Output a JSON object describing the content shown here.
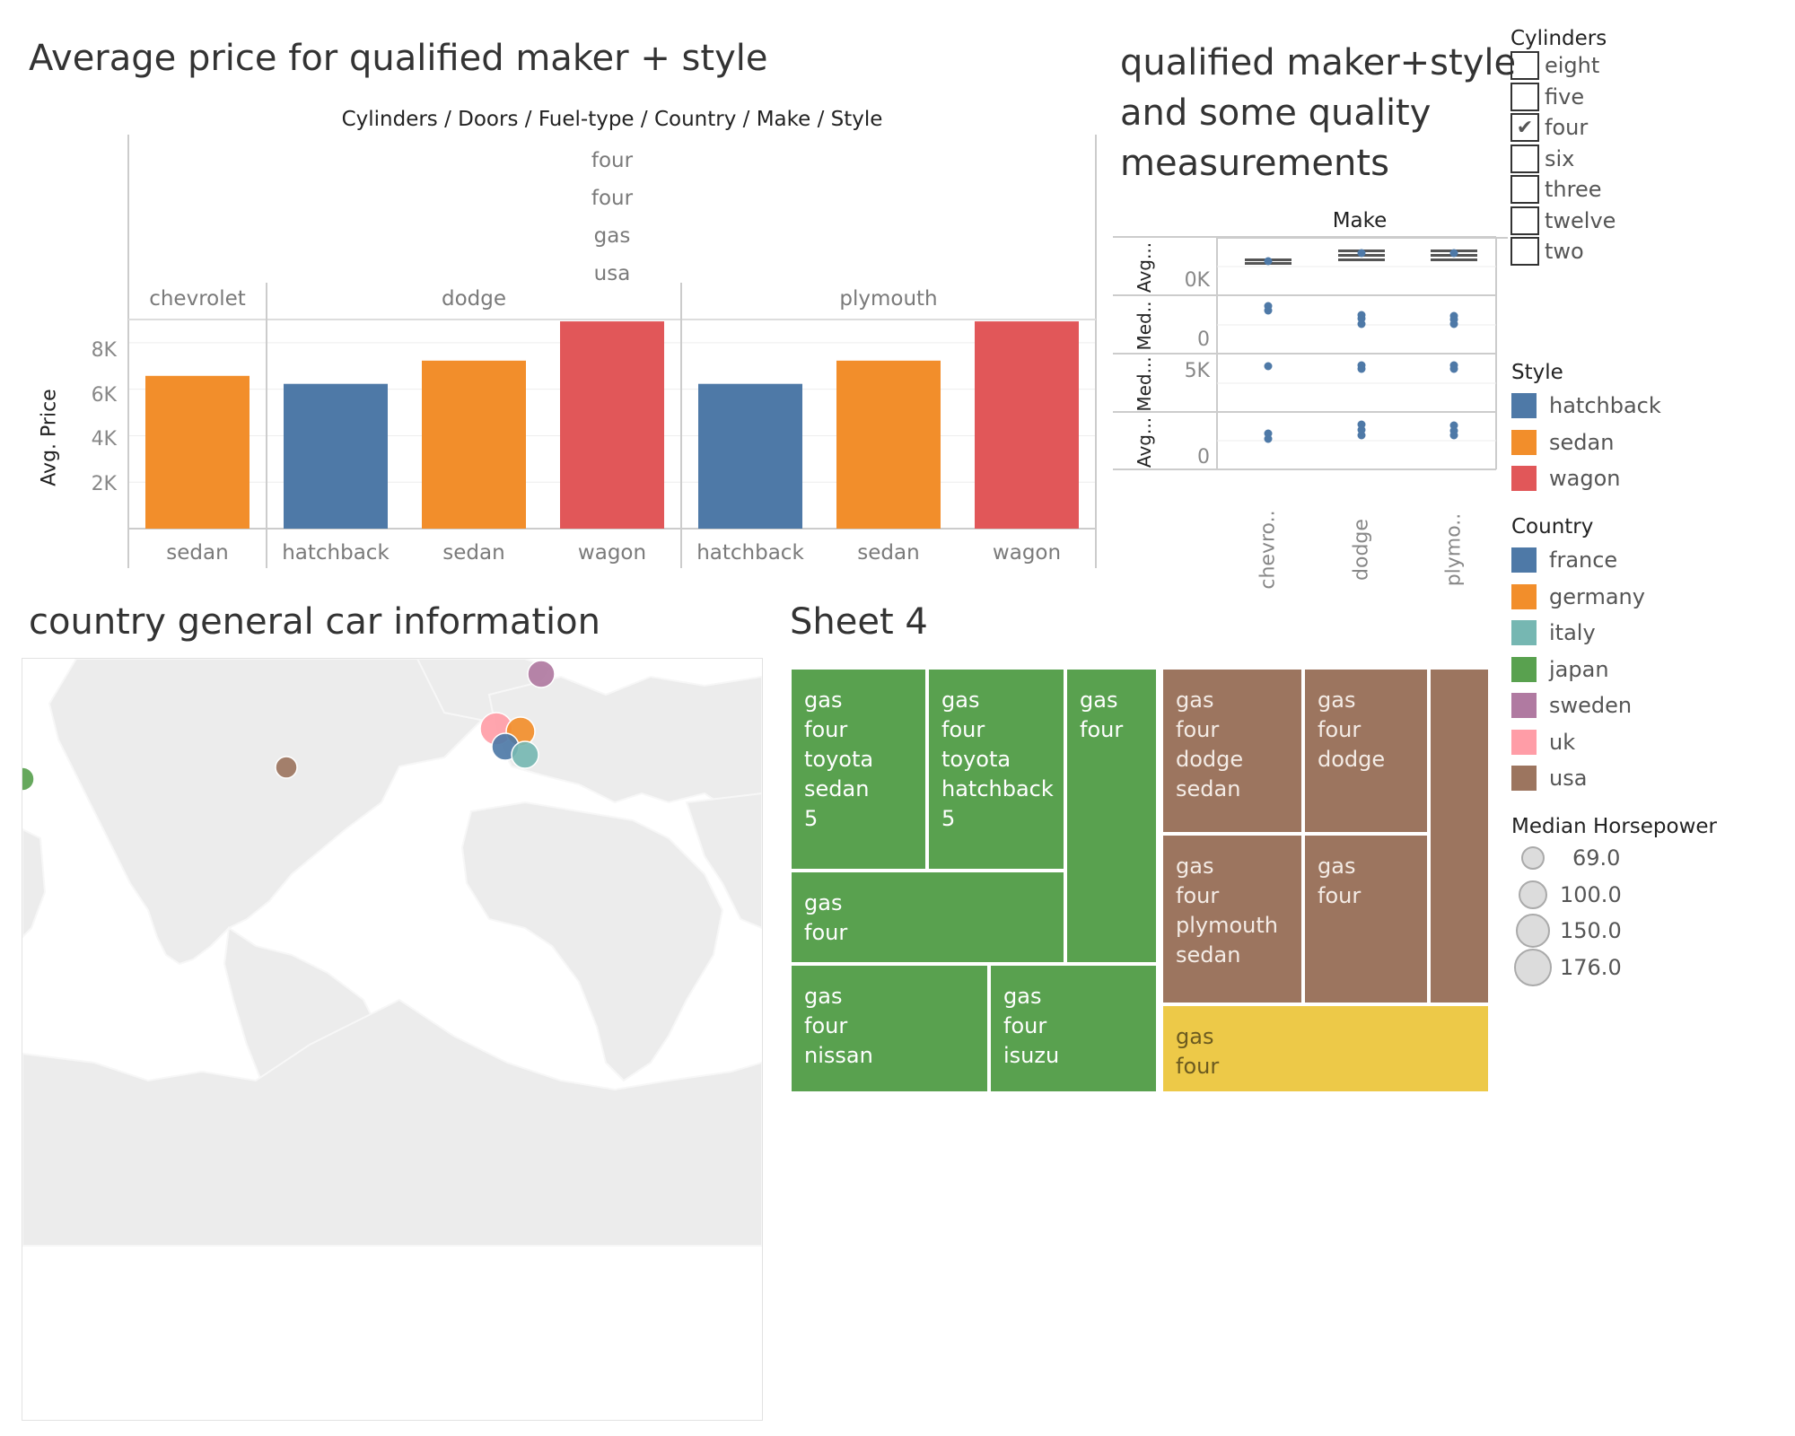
{
  "titles": {
    "avg_price": "Average price for qualified maker + style",
    "quality": "qualified maker+style and some quality measurements",
    "quality_lines": [
      "qualified maker+style",
      "and some quality",
      "measurements"
    ],
    "country": "country general car information",
    "sheet4": "Sheet 4"
  },
  "bar_chart": {
    "header": "Cylinders  /  Doors  /  Fuel-type  /  Country  /  Make  /  Style",
    "header_values": [
      "four",
      "four",
      "gas",
      "usa"
    ],
    "makes": [
      "chevrolet",
      "dodge",
      "plymouth"
    ],
    "y_label": "Avg. Price",
    "y_ticks": [
      "8K",
      "6K",
      "4K",
      "2K"
    ]
  },
  "chart_data": [
    {
      "type": "bar",
      "title": "Average price for qualified maker + style",
      "ylabel": "Avg. Price",
      "ylim": [
        0,
        9000
      ],
      "groups": [
        "chevrolet",
        "dodge",
        "plymouth"
      ],
      "bars": [
        {
          "make": "chevrolet",
          "style": "sedan",
          "value": 6575
        },
        {
          "make": "dodge",
          "style": "hatchback",
          "value": 6230
        },
        {
          "make": "dodge",
          "style": "sedan",
          "value": 7230
        },
        {
          "make": "dodge",
          "style": "wagon",
          "value": 8920
        },
        {
          "make": "plymouth",
          "style": "hatchback",
          "value": 6230
        },
        {
          "make": "plymouth",
          "style": "sedan",
          "value": 7230
        },
        {
          "make": "plymouth",
          "style": "wagon",
          "value": 8920
        }
      ],
      "grid": true
    },
    {
      "type": "scatter",
      "title": "qualified maker+style and some quality measurements",
      "xlabel": "Make",
      "categories": [
        "chevro..",
        "dodge",
        "plymo.."
      ],
      "rows": [
        {
          "label": "Avg...",
          "tick": "0K"
        },
        {
          "label": "Med..",
          "tick": "0"
        },
        {
          "label": "Med...",
          "tick": "5K"
        },
        {
          "label": "Avg...",
          "tick": "0"
        }
      ]
    }
  ],
  "quality_chart": {
    "col_header": "Make",
    "row_labels": [
      "Avg...",
      "Med..",
      "Med...",
      "Avg..."
    ],
    "row_ticks": [
      "0K",
      "0",
      "5K",
      "0"
    ],
    "x_labels": [
      "chevro..",
      "dodge",
      "plymo.."
    ]
  },
  "legends": {
    "cylinders": {
      "title": "Cylinders",
      "items": [
        {
          "label": "eight",
          "checked": false
        },
        {
          "label": "five",
          "checked": false
        },
        {
          "label": "four",
          "checked": true
        },
        {
          "label": "six",
          "checked": false
        },
        {
          "label": "three",
          "checked": false
        },
        {
          "label": "twelve",
          "checked": false
        },
        {
          "label": "two",
          "checked": false
        }
      ]
    },
    "style": {
      "title": "Style",
      "items": [
        {
          "label": "hatchback",
          "color": "#4e79a7"
        },
        {
          "label": "sedan",
          "color": "#f28e2b"
        },
        {
          "label": "wagon",
          "color": "#e15759"
        }
      ]
    },
    "country": {
      "title": "Country",
      "items": [
        {
          "label": "france",
          "color": "#4e79a7"
        },
        {
          "label": "germany",
          "color": "#f28e2b"
        },
        {
          "label": "italy",
          "color": "#76b7b2"
        },
        {
          "label": "japan",
          "color": "#59a14f"
        },
        {
          "label": "sweden",
          "color": "#b07aa1"
        },
        {
          "label": "uk",
          "color": "#ff9da7"
        },
        {
          "label": "usa",
          "color": "#9c755f"
        }
      ]
    },
    "horsepower": {
      "title": "Median Horsepower",
      "items": [
        "69.0",
        "100.0",
        "150.0",
        "176.0"
      ]
    }
  },
  "map_points": [
    {
      "country": "sweden",
      "color": "#b07aa1"
    },
    {
      "country": "uk",
      "color": "#ff9da7"
    },
    {
      "country": "germany",
      "color": "#f28e2b"
    },
    {
      "country": "france",
      "color": "#4e79a7"
    },
    {
      "country": "italy",
      "color": "#76b7b2"
    },
    {
      "country": "usa",
      "color": "#9c755f"
    },
    {
      "country": "japan",
      "color": "#59a14f"
    }
  ],
  "treemap": {
    "cells": [
      {
        "lines": [
          "gas",
          "four",
          "toyota",
          "sedan",
          "5"
        ],
        "tone": "green"
      },
      {
        "lines": [
          "gas",
          "four",
          "toyota",
          "hatchback",
          "5"
        ],
        "tone": "green"
      },
      {
        "lines": [
          "gas",
          "four"
        ],
        "tone": "green"
      },
      {
        "lines": [
          "gas",
          "four"
        ],
        "tone": "green"
      },
      {
        "lines": [
          "gas",
          "four",
          "nissan"
        ],
        "tone": "green"
      },
      {
        "lines": [
          "gas",
          "four",
          "isuzu"
        ],
        "tone": "green"
      },
      {
        "lines": [
          "gas",
          "four",
          "dodge",
          "sedan"
        ],
        "tone": "brown"
      },
      {
        "lines": [
          "gas",
          "four",
          "dodge"
        ],
        "tone": "brown"
      },
      {
        "lines": [
          "gas",
          "four",
          "plymouth",
          "sedan"
        ],
        "tone": "brown"
      },
      {
        "lines": [
          "gas",
          "four"
        ],
        "tone": "brown"
      },
      {
        "lines": [],
        "tone": "brown"
      },
      {
        "lines": [
          "gas",
          "four"
        ],
        "tone": "yellow"
      }
    ],
    "colors": {
      "green": "#59a14f",
      "brown": "#9c755f",
      "yellow": "#edc948"
    }
  }
}
